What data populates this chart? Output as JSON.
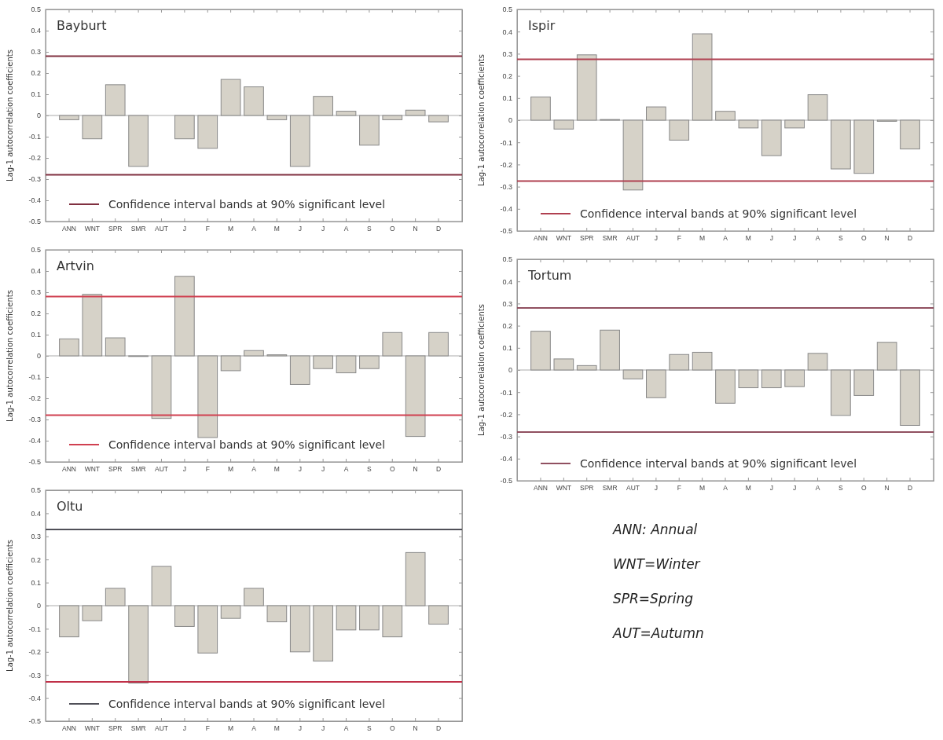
{
  "chart_data": [
    {
      "type": "bar",
      "title": "Bayburt",
      "ylabel": "Lag-1 autocorrelation coefficients",
      "categories": [
        "ANN",
        "WNT",
        "SPR",
        "SMR",
        "AUT",
        "J",
        "F",
        "M",
        "A",
        "M",
        "J",
        "J",
        "A",
        "S",
        "O",
        "N",
        "D"
      ],
      "values": [
        -0.02,
        -0.11,
        0.145,
        -0.24,
        0,
        -0.11,
        -0.155,
        0.17,
        0.135,
        -0.02,
        -0.24,
        0.09,
        0.02,
        -0.14,
        -0.02,
        0.025,
        -0.03
      ],
      "color": "#d6d2c8",
      "ylim": [
        -0.5,
        0.5
      ],
      "yticks": [
        -0.5,
        -0.4,
        -0.3,
        -0.2,
        -0.1,
        0,
        0.1,
        0.2,
        0.3,
        0.4,
        0.5
      ],
      "ref_lines": [
        {
          "axis": "y",
          "value": 0.28,
          "label": "Confidence interval bands at 90% significant level",
          "color": "#803040"
        },
        {
          "axis": "y",
          "value": -0.28,
          "label": null,
          "color": "#803040"
        }
      ],
      "legend": "bottom"
    },
    {
      "type": "bar",
      "title": "Ispir",
      "ylabel": "Lag-1 autocorrelation coefficients",
      "categories": [
        "ANN",
        "WNT",
        "SPR",
        "SMR",
        "AUT",
        "J",
        "F",
        "M",
        "A",
        "M",
        "J",
        "J",
        "A",
        "S",
        "O",
        "N",
        "D"
      ],
      "values": [
        0.105,
        -0.04,
        0.295,
        0.003,
        -0.315,
        0.06,
        -0.09,
        0.39,
        0.04,
        -0.035,
        -0.16,
        -0.035,
        0.115,
        -0.22,
        -0.24,
        -0.005,
        -0.13
      ],
      "color": "#d6d2c8",
      "ylim": [
        -0.5,
        0.5
      ],
      "yticks": [
        -0.5,
        -0.4,
        -0.3,
        -0.2,
        -0.1,
        0,
        0.1,
        0.2,
        0.3,
        0.4,
        0.5
      ],
      "ref_lines": [
        {
          "axis": "y",
          "value": 0.275,
          "label": "Confidence interval bands at 90% significant level",
          "color": "#b04050"
        },
        {
          "axis": "y",
          "value": -0.275,
          "label": null,
          "color": "#b04050"
        }
      ],
      "legend": "bottom"
    },
    {
      "type": "bar",
      "title": "Artvin",
      "ylabel": "Lag-1 autocorrelation coefficients",
      "categories": [
        "ANN",
        "WNT",
        "SPR",
        "SMR",
        "AUT",
        "J",
        "F",
        "M",
        "A",
        "M",
        "J",
        "J",
        "A",
        "S",
        "O",
        "N",
        "D"
      ],
      "values": [
        0.08,
        0.29,
        0.085,
        -0.003,
        -0.295,
        0.375,
        -0.385,
        -0.07,
        0.025,
        0.005,
        -0.135,
        -0.06,
        -0.08,
        -0.06,
        0.11,
        -0.38,
        0.11
      ],
      "color": "#d6d2c8",
      "ylim": [
        -0.5,
        0.5
      ],
      "yticks": [
        -0.5,
        -0.4,
        -0.3,
        -0.2,
        -0.1,
        0,
        0.1,
        0.2,
        0.3,
        0.4,
        0.5
      ],
      "ref_lines": [
        {
          "axis": "y",
          "value": 0.28,
          "label": "Confidence interval bands at 90% significant level",
          "color": "#d04050"
        },
        {
          "axis": "y",
          "value": -0.28,
          "label": null,
          "color": "#d04050"
        }
      ],
      "legend": "bottom"
    },
    {
      "type": "bar",
      "title": "Tortum",
      "ylabel": "Lag-1 autocorrelation coefficients",
      "categories": [
        "ANN",
        "WNT",
        "SPR",
        "SMR",
        "AUT",
        "J",
        "F",
        "M",
        "A",
        "M",
        "J",
        "J",
        "A",
        "S",
        "O",
        "N",
        "D"
      ],
      "values": [
        0.175,
        0.05,
        0.02,
        0.18,
        -0.04,
        -0.125,
        0.07,
        0.08,
        -0.15,
        -0.08,
        -0.08,
        -0.075,
        0.075,
        -0.205,
        -0.115,
        0.125,
        -0.25
      ],
      "color": "#d6d2c8",
      "ylim": [
        -0.5,
        0.5
      ],
      "yticks": [
        -0.5,
        -0.4,
        -0.3,
        -0.2,
        -0.1,
        0,
        0.1,
        0.2,
        0.3,
        0.4,
        0.5
      ],
      "ref_lines": [
        {
          "axis": "y",
          "value": 0.28,
          "label": "Confidence interval bands at 90% significant level",
          "color": "#905060"
        },
        {
          "axis": "y",
          "value": -0.28,
          "label": null,
          "color": "#905060"
        }
      ],
      "legend": "bottom"
    },
    {
      "type": "bar",
      "title": "Oltu",
      "ylabel": "Lag-1 autocorrelation coefficients",
      "categories": [
        "ANN",
        "WNT",
        "SPR",
        "SMR",
        "AUT",
        "J",
        "F",
        "M",
        "A",
        "M",
        "J",
        "J",
        "A",
        "S",
        "O",
        "N",
        "D"
      ],
      "values": [
        -0.135,
        -0.065,
        0.075,
        -0.335,
        0.17,
        -0.09,
        -0.205,
        -0.055,
        0.075,
        -0.07,
        -0.2,
        -0.24,
        -0.105,
        -0.105,
        -0.135,
        0.23,
        -0.08
      ],
      "color": "#d6d2c8",
      "ylim": [
        -0.5,
        0.5
      ],
      "yticks": [
        -0.5,
        -0.4,
        -0.3,
        -0.2,
        -0.1,
        0,
        0.1,
        0.2,
        0.3,
        0.4,
        0.5
      ],
      "ref_lines": [
        {
          "axis": "y",
          "value": 0.33,
          "label": "Confidence interval bands at 90% significant level",
          "color": "#505058"
        },
        {
          "axis": "y",
          "value": -0.33,
          "label": null,
          "color": "#c03048"
        }
      ],
      "legend": "bottom"
    },
    {
      "type": "other",
      "annotations": [
        "ANN: Annual",
        "WNT=Winter",
        "SPR=Spring",
        "AUT=Autumn"
      ]
    }
  ]
}
